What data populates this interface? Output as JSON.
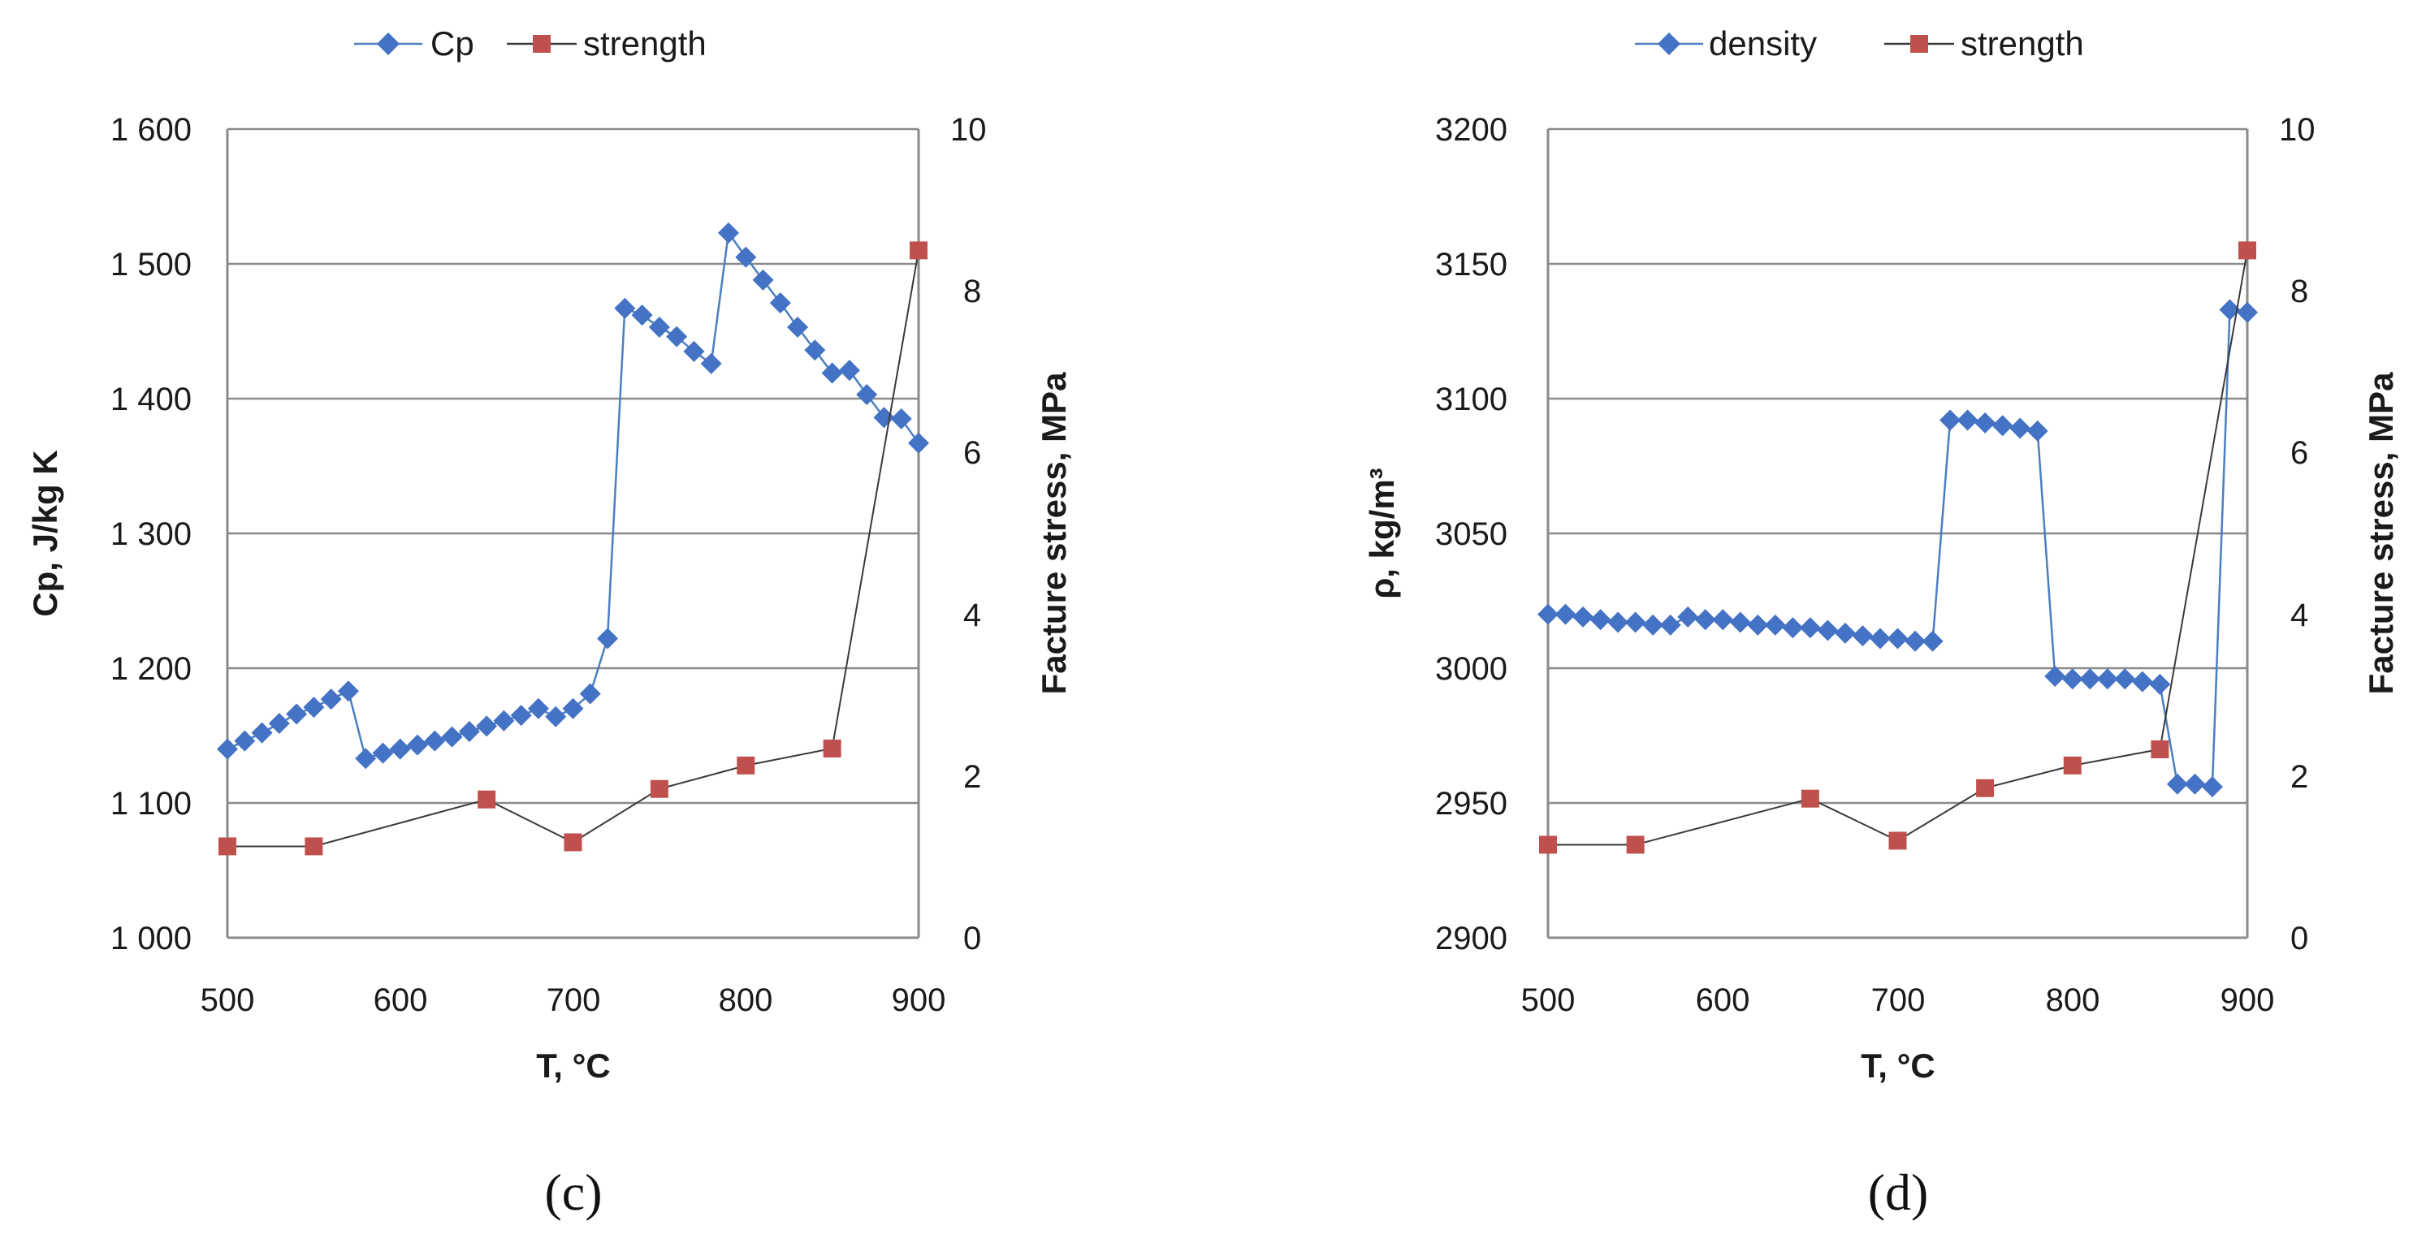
{
  "colors": {
    "primary_series": "#4a7fc1",
    "primary_marker": "#4472c4",
    "strength_marker": "#c0504d",
    "strength_line": "#3a3a3a",
    "grid": "#8a8a8a"
  },
  "chart_data": [
    {
      "id": "c",
      "type": "line",
      "caption": "(c)",
      "title": "",
      "xlabel": "T, °C",
      "ylabel": "Cp, J/kg K",
      "y2label": "Facture stress, MPa",
      "xlim": [
        500,
        900
      ],
      "ylim": [
        1000,
        1600
      ],
      "y2lim": [
        0,
        10
      ],
      "xticks": [
        500,
        600,
        700,
        800,
        900
      ],
      "yticks": [
        1000,
        1100,
        1200,
        1300,
        1400,
        1500,
        1600
      ],
      "ytick_labels": [
        "1 000",
        "1 100",
        "1 200",
        "1 300",
        "1 400",
        "1 500",
        "1 600"
      ],
      "y2ticks": [
        0,
        2,
        4,
        6,
        8,
        10
      ],
      "grid": true,
      "legend_position": "top",
      "series": [
        {
          "name": "Cp",
          "axis": "left",
          "marker": "diamond",
          "x": [
            500,
            510,
            520,
            530,
            540,
            550,
            560,
            570,
            580,
            590,
            600,
            610,
            620,
            630,
            640,
            650,
            660,
            670,
            680,
            690,
            700,
            710,
            720,
            730,
            740,
            750,
            760,
            770,
            780,
            790,
            800,
            810,
            820,
            830,
            840,
            850,
            860,
            870,
            880,
            890,
            900
          ],
          "values": [
            1140,
            1146,
            1152,
            1159,
            1166,
            1171,
            1177,
            1183,
            1133,
            1137,
            1140,
            1143,
            1146,
            1149,
            1153,
            1157,
            1161,
            1165,
            1170,
            1164,
            1170,
            1181,
            1222,
            1467,
            1462,
            1453,
            1446,
            1435,
            1426,
            1523,
            1505,
            1488,
            1471,
            1453,
            1436,
            1419,
            1421,
            1403,
            1386,
            1385,
            1367
          ]
        },
        {
          "name": "strength",
          "axis": "right",
          "marker": "square",
          "x": [
            500,
            550,
            650,
            700,
            750,
            800,
            850,
            900
          ],
          "values": [
            1.13,
            1.13,
            1.71,
            1.18,
            1.84,
            2.13,
            2.34,
            8.5
          ]
        }
      ]
    },
    {
      "id": "d",
      "type": "line",
      "caption": "(d)",
      "title": "",
      "xlabel": "T, °C",
      "ylabel": "ρ, kg/m³",
      "y2label": "Facture stress, MPa",
      "xlim": [
        500,
        900
      ],
      "ylim": [
        2900,
        3200
      ],
      "y2lim": [
        0,
        10
      ],
      "xticks": [
        500,
        600,
        700,
        800,
        900
      ],
      "yticks": [
        2900,
        2950,
        3000,
        3050,
        3100,
        3150,
        3200
      ],
      "ytick_labels": [
        "2900",
        "2950",
        "3000",
        "3050",
        "3100",
        "3150",
        "3200"
      ],
      "y2ticks": [
        0,
        2,
        4,
        6,
        8,
        10
      ],
      "grid": true,
      "legend_position": "top",
      "series": [
        {
          "name": "density",
          "axis": "left",
          "marker": "diamond",
          "x": [
            500,
            510,
            520,
            530,
            540,
            550,
            560,
            570,
            580,
            590,
            600,
            610,
            620,
            630,
            640,
            650,
            660,
            670,
            680,
            690,
            700,
            710,
            720,
            730,
            740,
            750,
            760,
            770,
            780,
            790,
            800,
            810,
            820,
            830,
            840,
            850,
            860,
            870,
            880,
            890,
            900
          ],
          "values": [
            3020,
            3020,
            3019,
            3018,
            3017,
            3017,
            3016,
            3016,
            3019,
            3018,
            3018,
            3017,
            3016,
            3016,
            3015,
            3015,
            3014,
            3013,
            3012,
            3011,
            3011,
            3010,
            3010,
            3092,
            3092,
            3091,
            3090,
            3089,
            3088,
            2997,
            2996,
            2996,
            2996,
            2996,
            2995,
            2994,
            2957,
            2957,
            2956,
            3133,
            3132
          ]
        },
        {
          "name": "strength",
          "axis": "right",
          "marker": "square",
          "x": [
            500,
            550,
            650,
            700,
            750,
            800,
            850,
            900
          ],
          "values": [
            1.15,
            1.15,
            1.72,
            1.2,
            1.85,
            2.13,
            2.33,
            8.5
          ]
        }
      ]
    }
  ]
}
